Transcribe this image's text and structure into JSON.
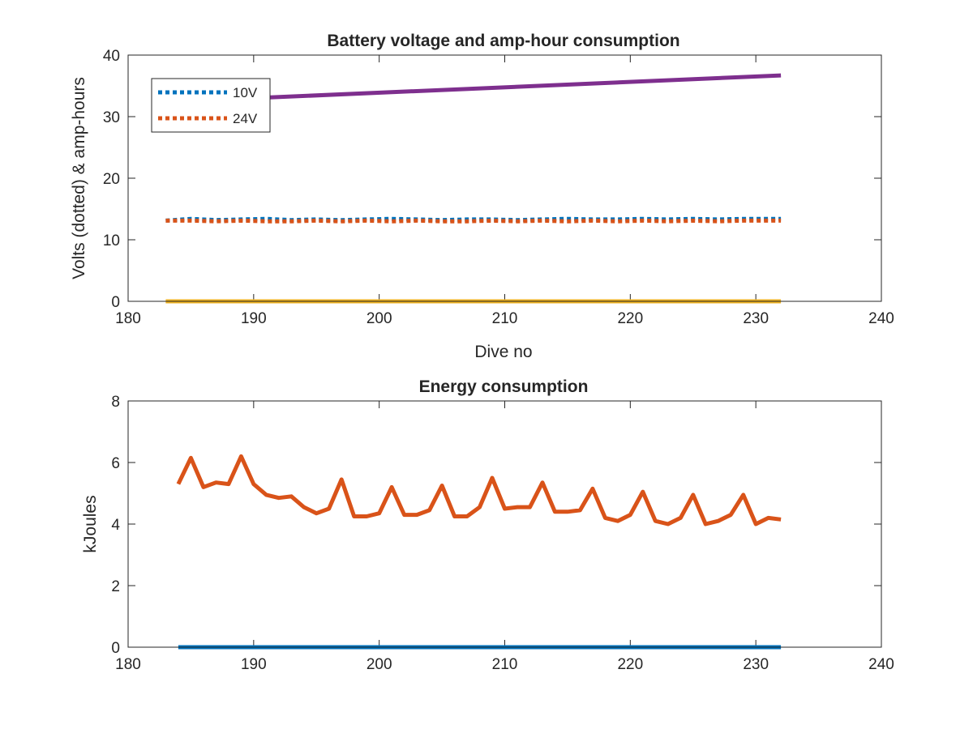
{
  "chart_data": [
    {
      "type": "line",
      "title": "Battery voltage and amp-hour consumption",
      "xlabel": "Dive no",
      "ylabel": "Volts (dotted) & amp-hours",
      "xlim": [
        180,
        240
      ],
      "ylim": [
        0,
        40
      ],
      "xticks": [
        "180",
        "190",
        "200",
        "210",
        "220",
        "230",
        "240"
      ],
      "yticks": [
        "0",
        "10",
        "20",
        "30",
        "40"
      ],
      "legend_position": "top-left",
      "grid": false,
      "series": [
        {
          "name": "10V",
          "style": "dotted",
          "color": "#0072BD",
          "x": [
            183,
            185,
            187,
            189,
            191,
            193,
            195,
            197,
            199,
            201,
            203,
            205,
            207,
            209,
            211,
            213,
            215,
            217,
            219,
            221,
            223,
            225,
            227,
            229,
            232
          ],
          "y": [
            13.1,
            13.4,
            13.2,
            13.3,
            13.4,
            13.2,
            13.3,
            13.2,
            13.3,
            13.4,
            13.3,
            13.2,
            13.3,
            13.3,
            13.2,
            13.3,
            13.4,
            13.3,
            13.3,
            13.4,
            13.3,
            13.4,
            13.3,
            13.4,
            13.4
          ]
        },
        {
          "name": "24V",
          "style": "dotted",
          "color": "#D95319",
          "x": [
            183,
            185,
            187,
            189,
            191,
            193,
            195,
            197,
            199,
            201,
            203,
            205,
            207,
            209,
            211,
            213,
            215,
            217,
            219,
            221,
            223,
            225,
            227,
            229,
            232
          ],
          "y": [
            13.1,
            13.1,
            13.0,
            13.1,
            13.0,
            13.0,
            13.1,
            13.0,
            13.1,
            13.0,
            13.1,
            13.0,
            13.0,
            13.1,
            13.0,
            13.1,
            13.0,
            13.1,
            13.0,
            13.1,
            13.0,
            13.1,
            13.0,
            13.1,
            13.1
          ]
        },
        {
          "style": "solid",
          "color": "#7E2F8E",
          "x": [
            183,
            232
          ],
          "y": [
            32.4,
            36.7
          ]
        },
        {
          "style": "solid",
          "color": "#EDB120",
          "x": [
            183,
            232
          ],
          "y": [
            0,
            0
          ]
        }
      ]
    },
    {
      "type": "line",
      "title": "Energy consumption",
      "xlabel": "",
      "ylabel": "kJoules",
      "xlim": [
        180,
        240
      ],
      "ylim": [
        0,
        8
      ],
      "xticks": [
        "180",
        "190",
        "200",
        "210",
        "220",
        "230",
        "240"
      ],
      "yticks": [
        "0",
        "2",
        "4",
        "6",
        "8"
      ],
      "grid": false,
      "series": [
        {
          "style": "solid",
          "color": "#D95319",
          "x": [
            184,
            185,
            186,
            187,
            188,
            189,
            190,
            191,
            192,
            193,
            194,
            195,
            196,
            197,
            198,
            199,
            200,
            201,
            202,
            203,
            204,
            205,
            206,
            207,
            208,
            209,
            210,
            211,
            212,
            213,
            214,
            215,
            216,
            217,
            218,
            219,
            220,
            221,
            222,
            223,
            224,
            225,
            226,
            227,
            228,
            229,
            230,
            231,
            232
          ],
          "y": [
            5.3,
            6.15,
            5.2,
            5.35,
            5.3,
            6.2,
            5.3,
            4.95,
            4.85,
            4.9,
            4.55,
            4.35,
            4.5,
            5.45,
            4.25,
            4.25,
            4.35,
            5.2,
            4.3,
            4.3,
            4.45,
            5.25,
            4.25,
            4.25,
            4.55,
            5.5,
            4.5,
            4.55,
            4.55,
            5.35,
            4.4,
            4.4,
            4.45,
            5.15,
            4.2,
            4.1,
            4.3,
            5.05,
            4.1,
            4.0,
            4.2,
            4.95,
            4.0,
            4.1,
            4.3,
            4.95,
            4.0,
            4.2,
            4.15
          ]
        },
        {
          "style": "solid",
          "color": "#0072BD",
          "x": [
            184,
            232
          ],
          "y": [
            0,
            0
          ]
        }
      ]
    }
  ]
}
